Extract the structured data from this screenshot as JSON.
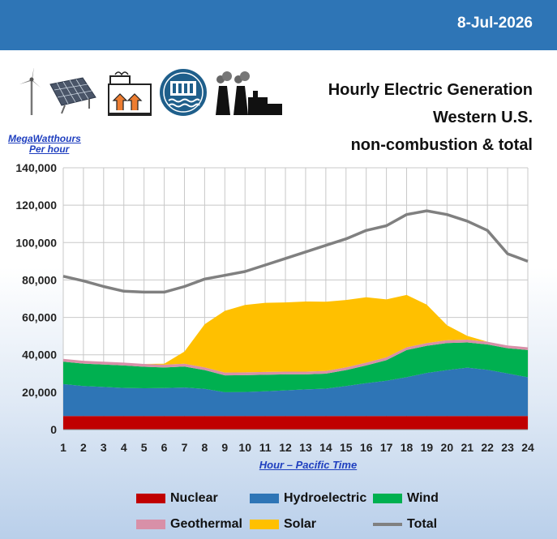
{
  "header": {
    "date": "8-Jul-2026"
  },
  "title": {
    "line1": "Hourly Electric Generation",
    "line2": "Western U.S.",
    "line3": "non-combustion & total"
  },
  "icons": [
    "wind-turbine-icon",
    "solar-panel-icon",
    "geothermal-plant-icon",
    "hydro-dam-icon",
    "power-plant-icon"
  ],
  "colors": {
    "topbar": "#2e75b6",
    "nuclear": "#c00000",
    "hydroelectric": "#2e75b6",
    "wind": "#00b050",
    "geothermal": "#d890a8",
    "solar": "#ffc000",
    "total": "#808080"
  },
  "chart_data": {
    "type": "area",
    "stacked": true,
    "ylabel_line1": "MegaWatthours",
    "ylabel_line2": "Per hour",
    "xlabel": "Hour – Pacific Time",
    "ylim": [
      0,
      140000
    ],
    "yticks": [
      "0",
      "20,000",
      "40,000",
      "60,000",
      "80,000",
      "100,000",
      "120,000",
      "140,000"
    ],
    "grid": true,
    "x": [
      1,
      2,
      3,
      4,
      5,
      6,
      7,
      8,
      9,
      10,
      11,
      12,
      13,
      14,
      15,
      16,
      17,
      18,
      19,
      20,
      21,
      22,
      23,
      24
    ],
    "series": [
      {
        "name": "Nuclear",
        "color": "#c00000",
        "values": [
          7300,
          7300,
          7300,
          7300,
          7300,
          7300,
          7300,
          7300,
          7300,
          7300,
          7300,
          7300,
          7300,
          7300,
          7300,
          7300,
          7300,
          7300,
          7300,
          7300,
          7300,
          7300,
          7300,
          7300
        ]
      },
      {
        "name": "Hydroelectric",
        "color": "#2e75b6",
        "values": [
          17000,
          16000,
          15500,
          15000,
          14800,
          14900,
          15200,
          14500,
          12700,
          12800,
          13200,
          13700,
          14200,
          14600,
          16000,
          17500,
          18800,
          20700,
          23000,
          24500,
          25800,
          24700,
          22700,
          20700
        ]
      },
      {
        "name": "Wind",
        "color": "#00b050",
        "values": [
          12000,
          12000,
          12000,
          12000,
          11500,
          11000,
          11200,
          10000,
          9000,
          9000,
          8800,
          8500,
          8000,
          8000,
          8500,
          9500,
          11000,
          14500,
          14500,
          14500,
          13500,
          13500,
          13500,
          14500
        ]
      },
      {
        "name": "Geothermal",
        "color": "#d890a8",
        "values": [
          1500,
          1500,
          1500,
          1500,
          1500,
          1500,
          1500,
          1500,
          1500,
          1500,
          1500,
          1500,
          1500,
          1500,
          1500,
          1500,
          1500,
          1500,
          1500,
          1500,
          1500,
          1500,
          1500,
          1500
        ]
      },
      {
        "name": "Solar",
        "color": "#ffc000",
        "values": [
          0,
          0,
          0,
          0,
          0,
          500,
          6500,
          23000,
          33000,
          36000,
          37000,
          37000,
          37500,
          37000,
          36000,
          35000,
          31000,
          28000,
          20500,
          8000,
          2000,
          0,
          0,
          0
        ]
      }
    ],
    "total": {
      "name": "Total",
      "color": "#808080",
      "values": [
        82000,
        79500,
        76500,
        74000,
        73500,
        73500,
        76500,
        80500,
        82500,
        84500,
        88000,
        91500,
        95000,
        98500,
        102000,
        106500,
        109000,
        115000,
        117000,
        115000,
        111500,
        106500,
        94000,
        90000
      ]
    },
    "legend": [
      "Nuclear",
      "Hydroelectric",
      "Wind",
      "Geothermal",
      "Solar",
      "Total"
    ]
  }
}
